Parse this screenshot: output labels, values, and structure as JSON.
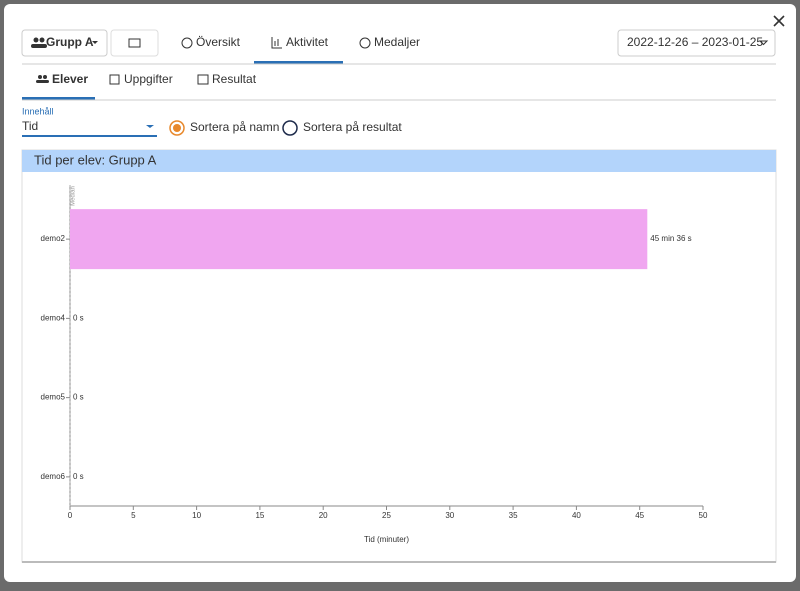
{
  "header": {
    "group": "Grupp A",
    "tabs": [
      "Översikt",
      "Aktivitet",
      "Medaljer"
    ],
    "date_range": "2022-12-26 – 2023-01-25"
  },
  "subtabs": [
    "Elever",
    "Uppgifter",
    "Resultat"
  ],
  "controls": {
    "content_label": "Innehåll",
    "content_value": "Tid",
    "sort_options": [
      "Sortera på namn",
      "Sortera på resultat"
    ]
  },
  "chart_data": {
    "type": "bar",
    "orientation": "horizontal",
    "title": "Tid per elev: Grupp A",
    "categories": [
      "demo2",
      "demo4",
      "demo5",
      "demo6"
    ],
    "values": [
      45.6,
      0,
      0,
      0
    ],
    "value_labels": [
      "45 min 36 s",
      "0 s",
      "0 s",
      "0 s"
    ],
    "color": "#f0a6f0",
    "xlim": [
      0,
      50
    ],
    "xticks": [
      0,
      5,
      10,
      15,
      20,
      25,
      30,
      35,
      40,
      45,
      50
    ],
    "xlabel": "Tid (minuter)",
    "median": 0,
    "median_label": "Median"
  }
}
